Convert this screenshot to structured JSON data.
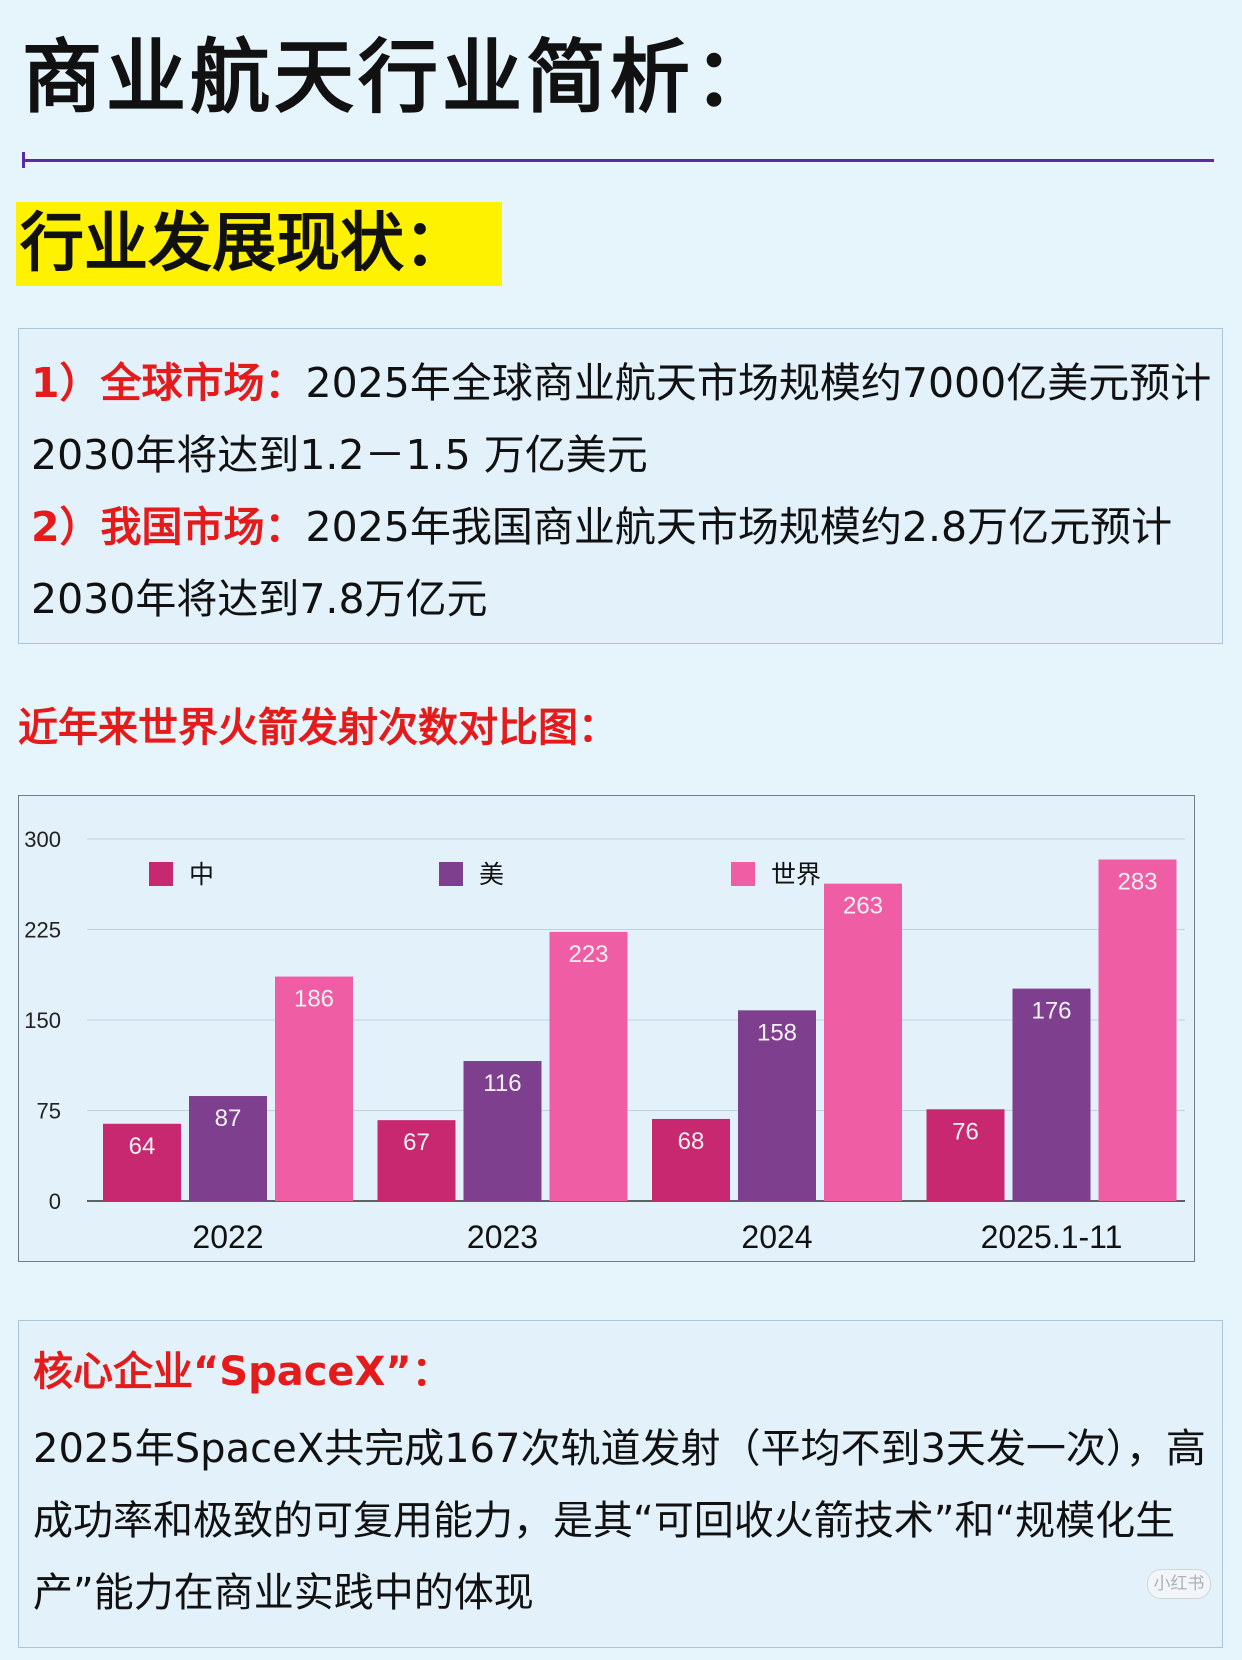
{
  "header": {
    "title": "商业航天行业简析："
  },
  "section": {
    "heading": "行业发展现状："
  },
  "market": {
    "global_label": "1）全球市场：",
    "global_text": "2025年全球商业航天市场规模约7000亿美元预计2030年将达到1.2－1.5 万亿美元",
    "china_label": "2）我国市场：",
    "china_text": "2025年我国商业航天市场规模约2.8万亿元预计2030年将达到7.8万亿元"
  },
  "chart_heading": "近年来世界火箭发射次数对比图：",
  "chart_data": {
    "type": "bar",
    "categories": [
      "2022",
      "2023",
      "2024",
      "2025.1-11"
    ],
    "series": [
      {
        "name": "中",
        "values": [
          64,
          67,
          68,
          76
        ],
        "color": "#c8286f"
      },
      {
        "name": "美",
        "values": [
          87,
          116,
          158,
          176
        ],
        "color": "#7f3f8f"
      },
      {
        "name": "世界",
        "values": [
          186,
          223,
          263,
          283
        ],
        "color": "#ef5ea4"
      }
    ],
    "yticks": [
      0,
      75,
      150,
      225,
      300
    ],
    "ylim": [
      0,
      300
    ],
    "legend": "top",
    "grid": true
  },
  "spacex": {
    "heading": "核心企业“SpaceX”：",
    "body": "2025年SpaceX共完成167次轨道发射（平均不到3天发一次），高成功率和极致的可复用能力，是其“可回收火箭技术”和“规模化生产”能力在商业实践中的体现"
  },
  "watermark": "小红书"
}
